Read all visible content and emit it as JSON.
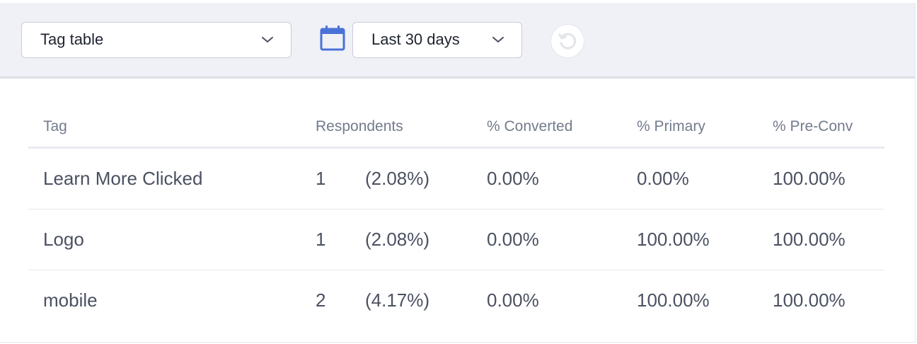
{
  "toolbar": {
    "report_select": {
      "value": "Tag table",
      "icon": "chevron-down-icon"
    },
    "date_icon": "calendar-icon",
    "date_select": {
      "value": "Last 30 days",
      "icon": "chevron-down-icon"
    },
    "refresh_icon": "refresh-icon"
  },
  "table": {
    "columns": [
      "Tag",
      "Respondents",
      "% Converted",
      "% Primary",
      "% Pre-Conv"
    ],
    "rows": [
      {
        "tag": "Learn More Clicked",
        "count": "1",
        "pct": "(2.08%)",
        "converted": "0.00%",
        "primary": "0.00%",
        "preconv": "100.00%"
      },
      {
        "tag": "Logo",
        "count": "1",
        "pct": "(2.08%)",
        "converted": "0.00%",
        "primary": "100.00%",
        "preconv": "100.00%"
      },
      {
        "tag": "mobile",
        "count": "2",
        "pct": "(4.17%)",
        "converted": "0.00%",
        "primary": "100.00%",
        "preconv": "100.00%"
      }
    ]
  },
  "colors": {
    "toolbar_bg": "#f0f1f6",
    "calendar_icon": "#4a72d6",
    "text": "#4b5161",
    "header_text": "#737b8c"
  }
}
